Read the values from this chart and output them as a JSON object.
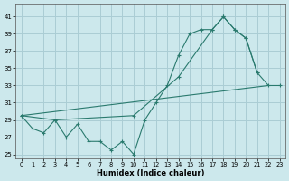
{
  "title": "",
  "xlabel": "Humidex (Indice chaleur)",
  "bg_color": "#cce8ec",
  "grid_color": "#aacdd4",
  "line_color": "#2a7a6e",
  "xlim": [
    -0.5,
    23.5
  ],
  "ylim": [
    24.5,
    42.5
  ],
  "xticks": [
    0,
    1,
    2,
    3,
    4,
    5,
    6,
    7,
    8,
    9,
    10,
    11,
    12,
    13,
    14,
    15,
    16,
    17,
    18,
    19,
    20,
    21,
    22,
    23
  ],
  "yticks": [
    25,
    27,
    29,
    31,
    33,
    35,
    37,
    39,
    41
  ],
  "line1_x": [
    0,
    1,
    2,
    3,
    4,
    5,
    6,
    7,
    8,
    9,
    10,
    11,
    12,
    13,
    14,
    15,
    16,
    17,
    18,
    19,
    20,
    21
  ],
  "line1_y": [
    29.5,
    28.0,
    27.5,
    29.0,
    27.0,
    28.5,
    26.5,
    26.5,
    25.5,
    26.5,
    25.0,
    29.0,
    31.0,
    33.0,
    36.5,
    39.0,
    39.5,
    39.5,
    41.0,
    39.5,
    38.5,
    34.5
  ],
  "line2_x": [
    0,
    22
  ],
  "line2_y": [
    29.5,
    33.0
  ],
  "line3_x": [
    0,
    3,
    10,
    14,
    17,
    18,
    19,
    20,
    21,
    22,
    23
  ],
  "line3_y": [
    29.5,
    29.0,
    29.5,
    34.0,
    39.5,
    41.0,
    39.5,
    38.5,
    34.5,
    33.0,
    33.0
  ]
}
